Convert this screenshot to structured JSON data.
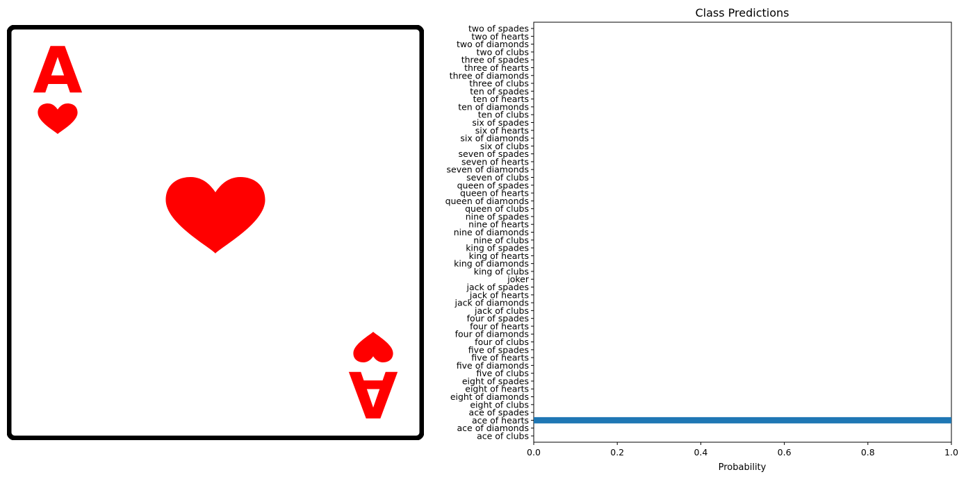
{
  "card_image": {
    "rank": "A",
    "suit_color": "#ff0000",
    "border_color": "#000000",
    "suit_icon": "heart-icon"
  },
  "chart_data": {
    "type": "bar",
    "orientation": "horizontal",
    "title": "Class Predictions",
    "xlabel": "Probability",
    "ylabel": "",
    "xlim": [
      0.0,
      1.0
    ],
    "x_ticks": [
      "0.0",
      "0.2",
      "0.4",
      "0.6",
      "0.8",
      "1.0"
    ],
    "bar_color": "#1f77b4",
    "grid": false,
    "legend": "none",
    "categories": [
      "ace of clubs",
      "ace of diamonds",
      "ace of hearts",
      "ace of spades",
      "eight of clubs",
      "eight of diamonds",
      "eight of hearts",
      "eight of spades",
      "five of clubs",
      "five of diamonds",
      "five of hearts",
      "five of spades",
      "four of clubs",
      "four of diamonds",
      "four of hearts",
      "four of spades",
      "jack of clubs",
      "jack of diamonds",
      "jack of hearts",
      "jack of spades",
      "joker",
      "king of clubs",
      "king of diamonds",
      "king of hearts",
      "king of spades",
      "nine of clubs",
      "nine of diamonds",
      "nine of hearts",
      "nine of spades",
      "queen of clubs",
      "queen of diamonds",
      "queen of hearts",
      "queen of spades",
      "seven of clubs",
      "seven of diamonds",
      "seven of hearts",
      "seven of spades",
      "six of clubs",
      "six of diamonds",
      "six of hearts",
      "six of spades",
      "ten of clubs",
      "ten of diamonds",
      "ten of hearts",
      "ten of spades",
      "three of clubs",
      "three of diamonds",
      "three of hearts",
      "three of spades",
      "two of clubs",
      "two of diamonds",
      "two of hearts",
      "two of spades"
    ],
    "values": [
      0,
      0,
      1.0,
      0,
      0,
      0,
      0,
      0,
      0,
      0,
      0,
      0,
      0,
      0,
      0,
      0,
      0,
      0,
      0,
      0,
      0,
      0,
      0,
      0,
      0,
      0,
      0,
      0,
      0,
      0,
      0,
      0,
      0,
      0,
      0,
      0,
      0,
      0,
      0,
      0,
      0,
      0,
      0,
      0,
      0,
      0,
      0,
      0,
      0,
      0,
      0,
      0,
      0
    ]
  }
}
